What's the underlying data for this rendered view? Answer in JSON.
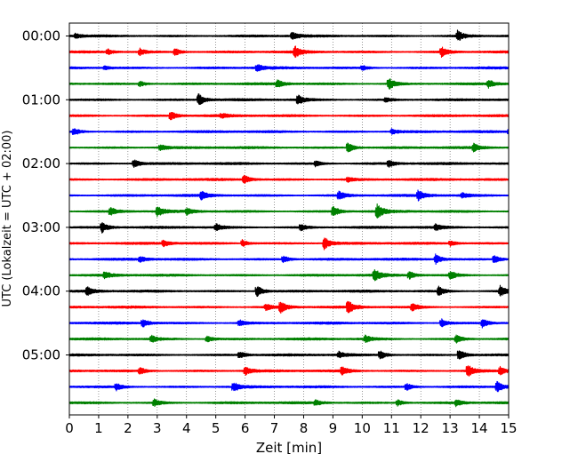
{
  "chart_data": {
    "type": "line",
    "xlabel": "Zeit  [min]",
    "ylabel": "UTC (Lokalzeit = UTC + 02:00)",
    "xlim": [
      0,
      15
    ],
    "x_ticks": [
      "0",
      "1",
      "2",
      "3",
      "4",
      "5",
      "6",
      "7",
      "8",
      "9",
      "10",
      "11",
      "12",
      "13",
      "14",
      "15"
    ],
    "y_ticks": [
      "00:00",
      "01:00",
      "02:00",
      "03:00",
      "04:00",
      "05:00"
    ],
    "grid_x": true,
    "trace_colors": [
      "#000000",
      "#ff0000",
      "#0000ff",
      "#008000"
    ],
    "trace_count": 24,
    "series": [
      {
        "start": "00:00",
        "events": [
          {
            "t": 7.6,
            "amp": 0.55
          },
          {
            "t": 13.25,
            "amp": 0.75
          },
          {
            "t": 0.2,
            "amp": 0.3
          }
        ]
      },
      {
        "start": "00:15",
        "events": [
          {
            "t": 1.3,
            "amp": 0.35
          },
          {
            "t": 2.4,
            "amp": 0.45
          },
          {
            "t": 3.6,
            "amp": 0.5
          },
          {
            "t": 7.7,
            "amp": 0.7
          },
          {
            "t": 12.7,
            "amp": 0.65
          }
        ]
      },
      {
        "start": "00:30",
        "events": [
          {
            "t": 1.2,
            "amp": 0.25
          },
          {
            "t": 6.4,
            "amp": 0.45
          },
          {
            "t": 10.0,
            "amp": 0.3
          }
        ]
      },
      {
        "start": "00:45",
        "events": [
          {
            "t": 2.4,
            "amp": 0.35
          },
          {
            "t": 7.1,
            "amp": 0.45
          },
          {
            "t": 10.9,
            "amp": 0.8
          },
          {
            "t": 14.3,
            "amp": 0.5
          }
        ]
      },
      {
        "start": "01:00",
        "events": [
          {
            "t": 4.4,
            "amp": 0.8
          },
          {
            "t": 7.8,
            "amp": 0.6
          },
          {
            "t": 10.8,
            "amp": 0.3
          }
        ]
      },
      {
        "start": "01:15",
        "events": [
          {
            "t": 3.45,
            "amp": 0.6
          },
          {
            "t": 5.2,
            "amp": 0.25
          }
        ]
      },
      {
        "start": "01:30",
        "events": [
          {
            "t": 0.15,
            "amp": 0.45
          },
          {
            "t": 11.0,
            "amp": 0.35
          },
          {
            "t": 15.0,
            "amp": 0.4
          }
        ]
      },
      {
        "start": "01:45",
        "events": [
          {
            "t": 3.1,
            "amp": 0.4
          },
          {
            "t": 9.5,
            "amp": 0.7
          },
          {
            "t": 13.8,
            "amp": 0.5
          }
        ]
      },
      {
        "start": "02:00",
        "events": [
          {
            "t": 2.2,
            "amp": 0.55
          },
          {
            "t": 8.4,
            "amp": 0.35
          },
          {
            "t": 10.9,
            "amp": 0.4
          }
        ]
      },
      {
        "start": "02:15",
        "events": [
          {
            "t": 5.95,
            "amp": 0.6
          },
          {
            "t": 9.5,
            "amp": 0.3
          }
        ]
      },
      {
        "start": "02:30",
        "events": [
          {
            "t": 4.5,
            "amp": 0.55
          },
          {
            "t": 9.2,
            "amp": 0.6
          },
          {
            "t": 11.9,
            "amp": 0.7
          },
          {
            "t": 13.4,
            "amp": 0.35
          }
        ]
      },
      {
        "start": "02:45",
        "events": [
          {
            "t": 1.4,
            "amp": 0.5
          },
          {
            "t": 3.0,
            "amp": 0.65
          },
          {
            "t": 9.0,
            "amp": 0.7
          },
          {
            "t": 10.5,
            "amp": 0.95
          },
          {
            "t": 4.0,
            "amp": 0.4
          }
        ]
      },
      {
        "start": "03:00",
        "events": [
          {
            "t": 1.1,
            "amp": 0.7
          },
          {
            "t": 5.0,
            "amp": 0.45
          },
          {
            "t": 7.9,
            "amp": 0.4
          },
          {
            "t": 12.5,
            "amp": 0.4
          }
        ]
      },
      {
        "start": "03:15",
        "events": [
          {
            "t": 3.2,
            "amp": 0.4
          },
          {
            "t": 5.9,
            "amp": 0.45
          },
          {
            "t": 8.7,
            "amp": 0.8
          },
          {
            "t": 13.0,
            "amp": 0.35
          }
        ]
      },
      {
        "start": "03:30",
        "events": [
          {
            "t": 2.4,
            "amp": 0.35
          },
          {
            "t": 7.3,
            "amp": 0.45
          },
          {
            "t": 12.5,
            "amp": 0.65
          },
          {
            "t": 14.5,
            "amp": 0.55
          }
        ]
      },
      {
        "start": "03:45",
        "events": [
          {
            "t": 1.2,
            "amp": 0.45
          },
          {
            "t": 10.4,
            "amp": 0.85
          },
          {
            "t": 11.6,
            "amp": 0.5
          },
          {
            "t": 13.0,
            "amp": 0.55
          }
        ]
      },
      {
        "start": "04:00",
        "events": [
          {
            "t": 0.6,
            "amp": 0.55
          },
          {
            "t": 6.4,
            "amp": 0.75
          },
          {
            "t": 12.6,
            "amp": 0.6
          },
          {
            "t": 14.7,
            "amp": 0.7
          }
        ]
      },
      {
        "start": "04:15",
        "events": [
          {
            "t": 7.2,
            "amp": 0.75
          },
          {
            "t": 9.5,
            "amp": 0.85
          },
          {
            "t": 11.7,
            "amp": 0.5
          },
          {
            "t": 6.7,
            "amp": 0.4
          }
        ]
      },
      {
        "start": "04:30",
        "events": [
          {
            "t": 2.5,
            "amp": 0.55
          },
          {
            "t": 5.8,
            "amp": 0.4
          },
          {
            "t": 12.7,
            "amp": 0.55
          },
          {
            "t": 14.1,
            "amp": 0.6
          }
        ]
      },
      {
        "start": "04:45",
        "events": [
          {
            "t": 2.8,
            "amp": 0.45
          },
          {
            "t": 4.7,
            "amp": 0.4
          },
          {
            "t": 10.1,
            "amp": 0.45
          },
          {
            "t": 13.2,
            "amp": 0.5
          }
        ]
      },
      {
        "start": "05:00",
        "events": [
          {
            "t": 5.8,
            "amp": 0.45
          },
          {
            "t": 9.2,
            "amp": 0.4
          },
          {
            "t": 10.6,
            "amp": 0.6
          },
          {
            "t": 13.3,
            "amp": 0.75
          }
        ]
      },
      {
        "start": "05:15",
        "events": [
          {
            "t": 2.4,
            "amp": 0.45
          },
          {
            "t": 6.0,
            "amp": 0.55
          },
          {
            "t": 9.3,
            "amp": 0.55
          },
          {
            "t": 13.6,
            "amp": 0.8
          },
          {
            "t": 14.7,
            "amp": 0.5
          }
        ]
      },
      {
        "start": "05:30",
        "events": [
          {
            "t": 1.6,
            "amp": 0.45
          },
          {
            "t": 5.6,
            "amp": 0.6
          },
          {
            "t": 11.5,
            "amp": 0.5
          },
          {
            "t": 14.6,
            "amp": 0.7
          }
        ]
      },
      {
        "start": "05:45",
        "events": [
          {
            "t": 2.9,
            "amp": 0.45
          },
          {
            "t": 8.4,
            "amp": 0.35
          },
          {
            "t": 11.2,
            "amp": 0.4
          },
          {
            "t": 13.2,
            "amp": 0.4
          }
        ]
      }
    ]
  }
}
